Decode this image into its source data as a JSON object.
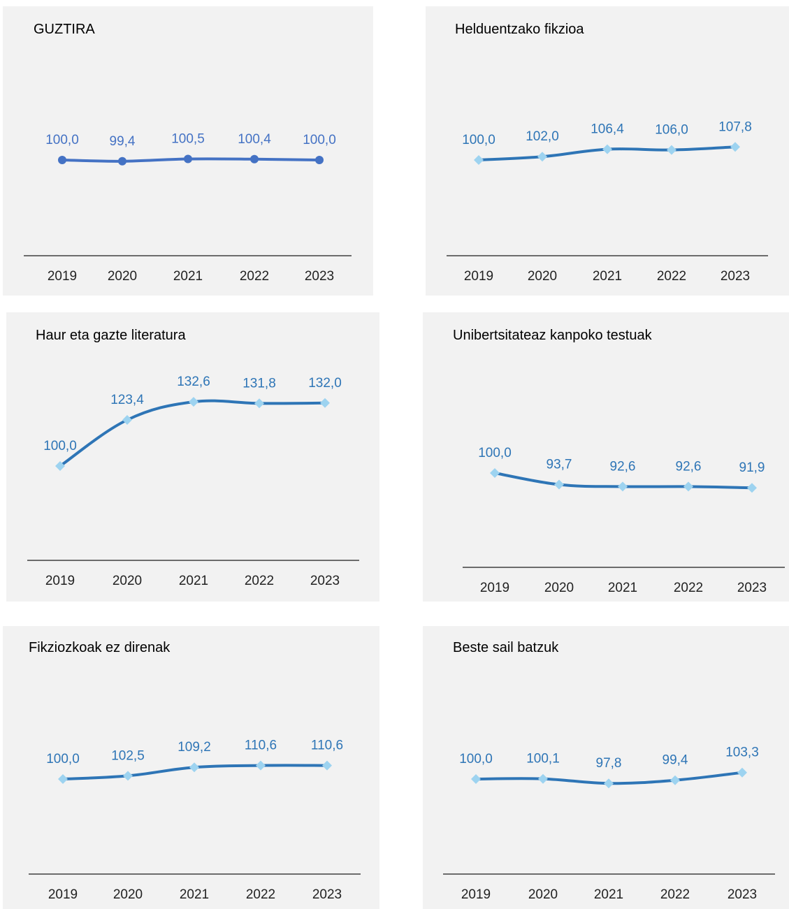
{
  "chart_data": [
    {
      "type": "line",
      "title": "GUZTIRA",
      "categories": [
        "2019",
        "2020",
        "2021",
        "2022",
        "2023"
      ],
      "values": [
        100.0,
        99.4,
        100.5,
        100.4,
        100.0
      ],
      "value_labels": [
        "100,0",
        "99,4",
        "100,5",
        "100,4",
        "100,0"
      ],
      "marker": "circle",
      "line_color": "#4472c4",
      "marker_color": "#4472c4",
      "label_color": "#4472c4",
      "grid": false
    },
    {
      "type": "line",
      "title": "Helduentzako fikzioa",
      "categories": [
        "2019",
        "2020",
        "2021",
        "2022",
        "2023"
      ],
      "values": [
        100.0,
        102.0,
        106.4,
        106.0,
        107.8
      ],
      "value_labels": [
        "100,0",
        "102,0",
        "106,4",
        "106,0",
        "107,8"
      ],
      "marker": "diamond",
      "line_color": "#2e75b6",
      "marker_color": "#9dd3f0",
      "label_color": "#2e75b6",
      "grid": false
    },
    {
      "type": "line",
      "title": "Haur eta gazte literatura",
      "categories": [
        "2019",
        "2020",
        "2021",
        "2022",
        "2023"
      ],
      "values": [
        100.0,
        123.4,
        132.6,
        131.8,
        132.0
      ],
      "value_labels": [
        "100,0",
        "123,4",
        "132,6",
        "131,8",
        "132,0"
      ],
      "marker": "diamond",
      "line_color": "#2e75b6",
      "marker_color": "#9dd3f0",
      "label_color": "#2e75b6",
      "grid": false
    },
    {
      "type": "line",
      "title": "Unibertsitateaz kanpoko testuak",
      "categories": [
        "2019",
        "2020",
        "2021",
        "2022",
        "2023"
      ],
      "values": [
        100.0,
        93.7,
        92.6,
        92.6,
        91.9
      ],
      "value_labels": [
        "100,0",
        "93,7",
        "92,6",
        "92,6",
        "91,9"
      ],
      "marker": "diamond",
      "line_color": "#2e75b6",
      "marker_color": "#9dd3f0",
      "label_color": "#2e75b6",
      "grid": false
    },
    {
      "type": "line",
      "title": "Fikziozkoak ez direnak",
      "categories": [
        "2019",
        "2020",
        "2021",
        "2022",
        "2023"
      ],
      "values": [
        100.0,
        102.5,
        109.2,
        110.6,
        110.6
      ],
      "value_labels": [
        "100,0",
        "102,5",
        "109,2",
        "110,6",
        "110,6"
      ],
      "marker": "diamond",
      "line_color": "#2e75b6",
      "marker_color": "#9dd3f0",
      "label_color": "#2e75b6",
      "grid": false
    },
    {
      "type": "line",
      "title": "Beste sail batzuk",
      "categories": [
        "2019",
        "2020",
        "2021",
        "2022",
        "2023"
      ],
      "values": [
        100.0,
        100.1,
        97.8,
        99.4,
        103.3
      ],
      "value_labels": [
        "100,0",
        "100,1",
        "97,8",
        "99,4",
        "103,3"
      ],
      "marker": "diamond",
      "line_color": "#2e75b6",
      "marker_color": "#9dd3f0",
      "label_color": "#2e75b6",
      "grid": false
    }
  ]
}
